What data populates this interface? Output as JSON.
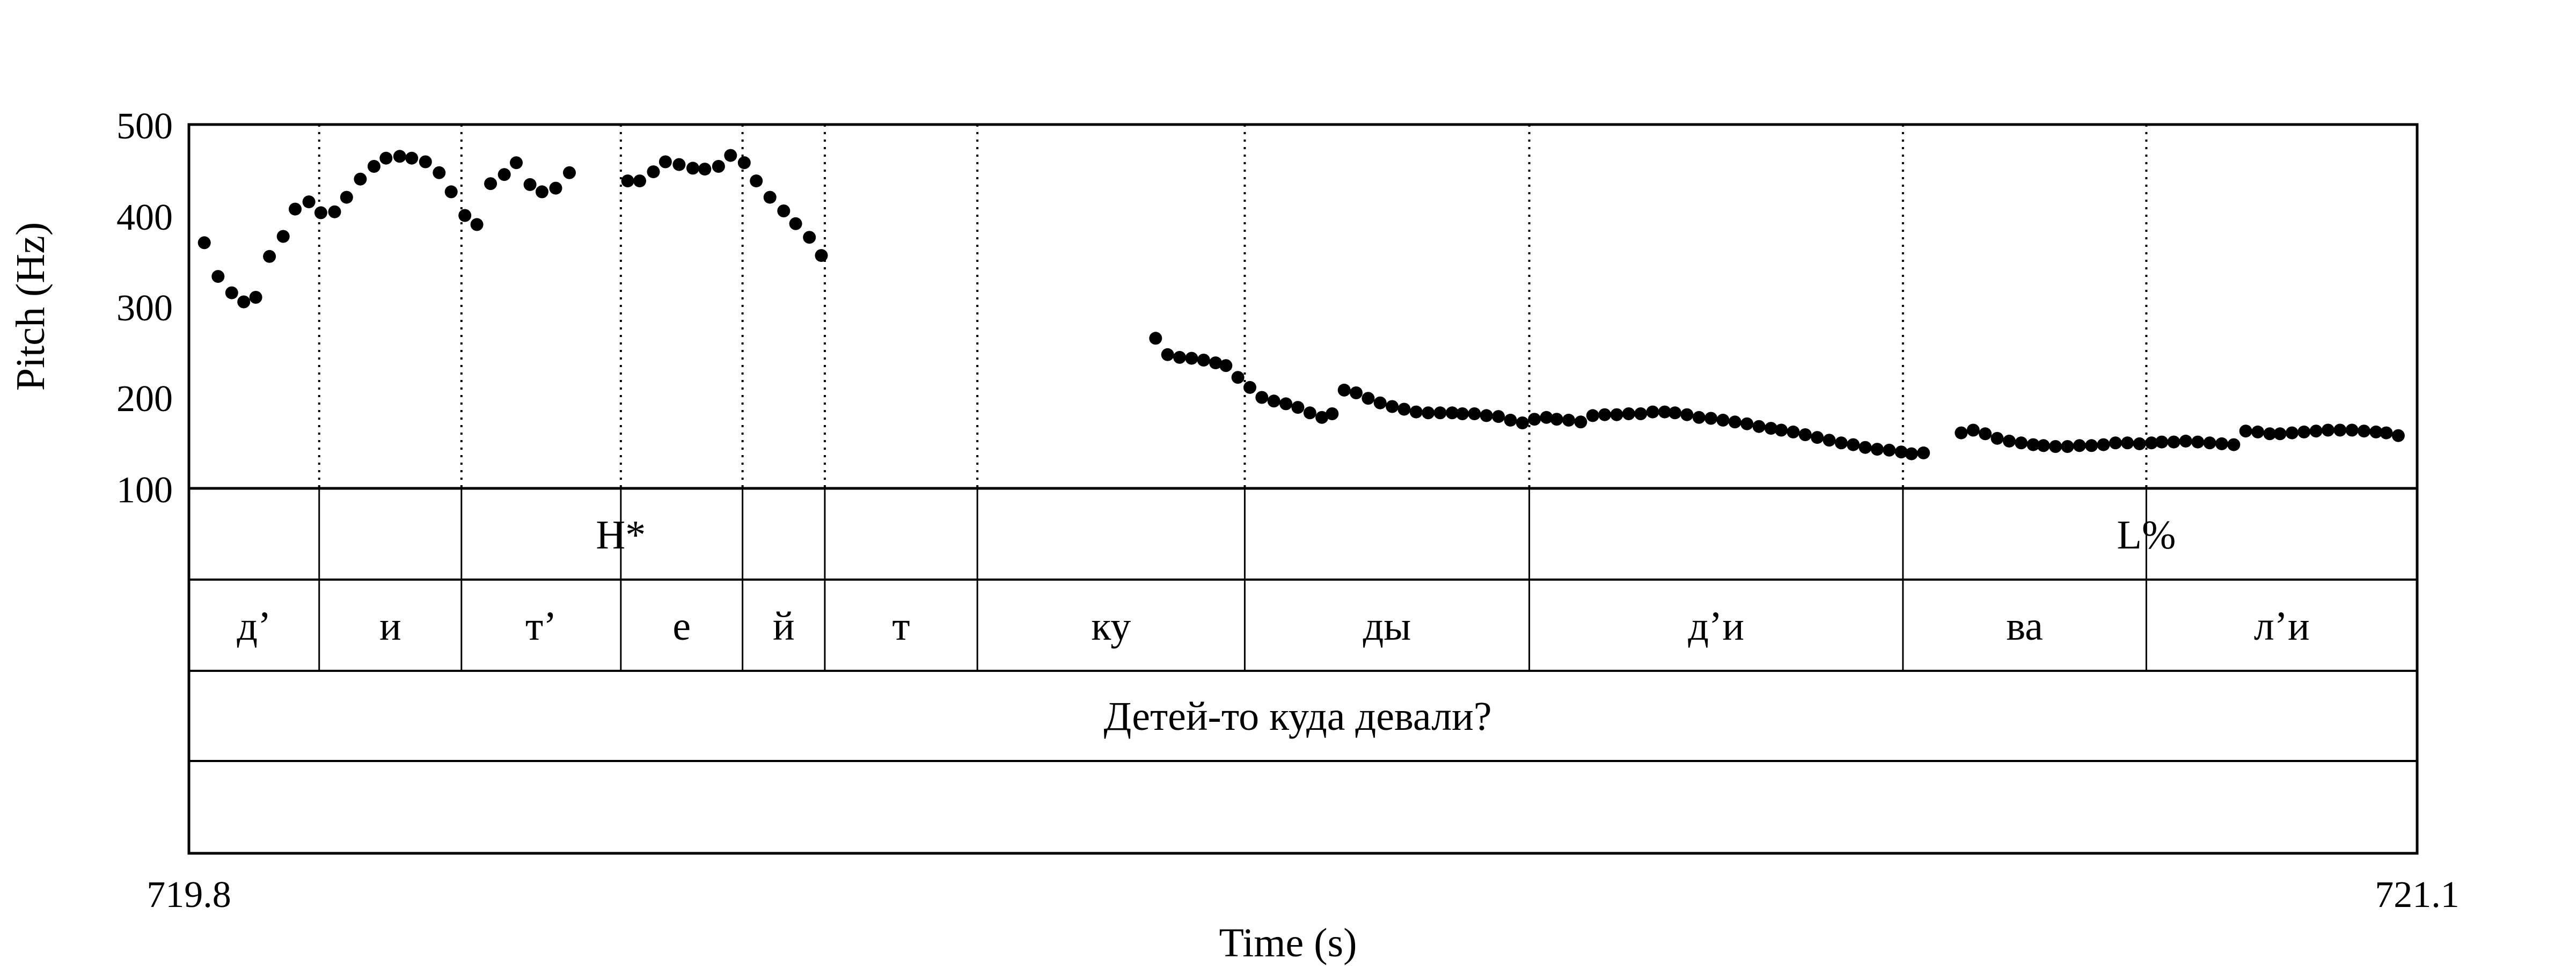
{
  "chart_data": {
    "type": "scatter",
    "ylabel": "Pitch (Hz)",
    "xlabel": "Time (s)",
    "xlim": [
      719.8,
      721.1
    ],
    "ylim": [
      100,
      500
    ],
    "yticks": [
      "500",
      "400",
      "300",
      "200",
      "100"
    ],
    "xticks": [
      "719.8",
      "721.1"
    ],
    "grid": false,
    "boundaries": [
      719.876,
      719.959,
      720.052,
      720.123,
      720.171,
      720.26,
      720.416,
      720.582,
      720.8,
      720.942
    ],
    "segments": [
      {
        "label": "д’",
        "start": 719.8,
        "end": 719.876
      },
      {
        "label": "и",
        "start": 719.876,
        "end": 719.959
      },
      {
        "label": "т’",
        "start": 719.959,
        "end": 720.052
      },
      {
        "label": "е",
        "start": 720.052,
        "end": 720.123
      },
      {
        "label": "й",
        "start": 720.123,
        "end": 720.171
      },
      {
        "label": "т",
        "start": 720.171,
        "end": 720.26
      },
      {
        "label": "ку",
        "start": 720.26,
        "end": 720.416
      },
      {
        "label": "ды",
        "start": 720.416,
        "end": 720.582
      },
      {
        "label": "д’и",
        "start": 720.582,
        "end": 720.8
      },
      {
        "label": "ва",
        "start": 720.8,
        "end": 720.942
      },
      {
        "label": "л’и",
        "start": 720.942,
        "end": 721.1
      }
    ],
    "tones": [
      {
        "label": "H*",
        "time": 720.052
      },
      {
        "label": "L%",
        "time": 720.942
      }
    ],
    "sentence": "Детей-то куда девали?",
    "series": [
      {
        "values": [
          [
            719.809,
            370
          ],
          [
            719.817,
            333
          ],
          [
            719.825,
            315
          ],
          [
            719.832,
            305
          ],
          [
            719.839,
            310
          ],
          [
            719.847,
            355
          ],
          [
            719.855,
            377
          ],
          [
            719.862,
            407
          ],
          [
            719.87,
            415
          ],
          [
            719.877,
            403
          ],
          [
            719.885,
            404
          ],
          [
            719.892,
            420
          ],
          [
            719.9,
            440
          ],
          [
            719.908,
            454
          ],
          [
            719.915,
            463
          ],
          [
            719.923,
            465
          ],
          [
            719.93,
            463
          ],
          [
            719.938,
            459
          ],
          [
            719.946,
            447
          ],
          [
            719.953,
            426
          ],
          [
            719.961,
            400
          ],
          [
            719.968,
            390
          ],
          [
            719.976,
            435
          ],
          [
            719.984,
            445
          ],
          [
            719.991,
            458
          ],
          [
            719.999,
            434
          ],
          [
            720.006,
            426
          ],
          [
            720.014,
            430
          ],
          [
            720.022,
            447
          ],
          [
            720.056,
            438
          ],
          [
            720.063,
            438
          ],
          [
            720.071,
            448
          ],
          [
            720.078,
            459
          ],
          [
            720.086,
            456
          ],
          [
            720.094,
            452
          ],
          [
            720.101,
            451
          ],
          [
            720.109,
            454
          ],
          [
            720.116,
            466
          ],
          [
            720.124,
            458
          ],
          [
            720.131,
            438
          ],
          [
            720.139,
            420
          ],
          [
            720.147,
            405
          ],
          [
            720.154,
            391
          ],
          [
            720.162,
            376
          ],
          [
            720.169,
            356
          ],
          [
            720.364,
            265
          ],
          [
            720.371,
            247
          ],
          [
            720.378,
            244
          ],
          [
            720.385,
            243
          ],
          [
            720.392,
            241
          ],
          [
            720.399,
            238
          ],
          [
            720.405,
            235
          ],
          [
            720.412,
            222
          ],
          [
            720.419,
            211
          ],
          [
            720.426,
            200
          ],
          [
            720.433,
            196
          ],
          [
            720.44,
            193
          ],
          [
            720.447,
            189
          ],
          [
            720.454,
            183
          ],
          [
            720.461,
            178
          ],
          [
            720.467,
            182
          ],
          [
            720.474,
            208
          ],
          [
            720.481,
            205
          ],
          [
            720.488,
            199
          ],
          [
            720.495,
            194
          ],
          [
            720.502,
            190
          ],
          [
            720.509,
            187
          ],
          [
            720.516,
            184
          ],
          [
            720.523,
            183
          ],
          [
            720.53,
            183
          ],
          [
            720.537,
            183
          ],
          [
            720.543,
            182
          ],
          [
            720.55,
            182
          ],
          [
            720.557,
            180
          ],
          [
            720.564,
            179
          ],
          [
            720.571,
            175
          ],
          [
            720.578,
            172
          ],
          [
            720.585,
            176
          ],
          [
            720.592,
            178
          ],
          [
            720.598,
            176
          ],
          [
            720.605,
            175
          ],
          [
            720.612,
            173
          ],
          [
            720.619,
            180
          ],
          [
            720.626,
            181
          ],
          [
            720.633,
            181
          ],
          [
            720.64,
            182
          ],
          [
            720.647,
            182
          ],
          [
            720.654,
            184
          ],
          [
            720.661,
            184
          ],
          [
            720.667,
            183
          ],
          [
            720.674,
            181
          ],
          [
            720.681,
            178
          ],
          [
            720.688,
            177
          ],
          [
            720.695,
            175
          ],
          [
            720.702,
            173
          ],
          [
            720.709,
            171
          ],
          [
            720.716,
            168
          ],
          [
            720.723,
            166
          ],
          [
            720.729,
            164
          ],
          [
            720.736,
            162
          ],
          [
            720.743,
            159
          ],
          [
            720.75,
            156
          ],
          [
            720.757,
            153
          ],
          [
            720.764,
            150
          ],
          [
            720.771,
            148
          ],
          [
            720.778,
            145
          ],
          [
            720.785,
            143
          ],
          [
            720.792,
            142
          ],
          [
            720.799,
            140
          ],
          [
            720.805,
            138
          ],
          [
            720.812,
            139
          ],
          [
            720.834,
            161
          ],
          [
            720.841,
            164
          ],
          [
            720.848,
            160
          ],
          [
            720.855,
            155
          ],
          [
            720.862,
            152
          ],
          [
            720.869,
            150
          ],
          [
            720.876,
            148
          ],
          [
            720.882,
            147
          ],
          [
            720.889,
            146
          ],
          [
            720.896,
            146
          ],
          [
            720.903,
            147
          ],
          [
            720.91,
            147
          ],
          [
            720.917,
            148
          ],
          [
            720.924,
            150
          ],
          [
            720.931,
            150
          ],
          [
            720.938,
            149
          ],
          [
            720.945,
            150
          ],
          [
            720.951,
            151
          ],
          [
            720.958,
            151
          ],
          [
            720.965,
            152
          ],
          [
            720.972,
            151
          ],
          [
            720.979,
            150
          ],
          [
            720.986,
            149
          ],
          [
            720.993,
            148
          ],
          [
            721.0,
            163
          ],
          [
            721.007,
            162
          ],
          [
            721.014,
            160
          ],
          [
            721.02,
            160
          ],
          [
            721.027,
            161
          ],
          [
            721.034,
            162
          ],
          [
            721.041,
            163
          ],
          [
            721.048,
            164
          ],
          [
            721.055,
            164
          ],
          [
            721.062,
            164
          ],
          [
            721.069,
            163
          ],
          [
            721.076,
            162
          ],
          [
            721.082,
            161
          ],
          [
            721.089,
            158
          ]
        ]
      }
    ]
  }
}
